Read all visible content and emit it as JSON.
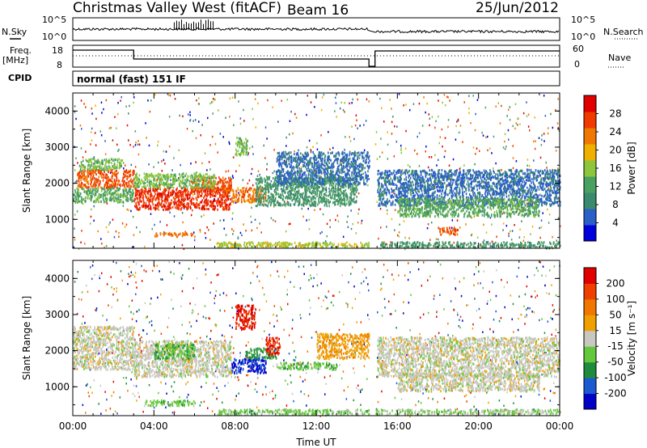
{
  "header": {
    "title": "Christmas Valley West (fitACF)",
    "beam": "Beam 16",
    "date": "25/Jun/2012"
  },
  "top_panels": {
    "nsky_label": "N.Sky",
    "nsky_ticks": [
      "10^5",
      "10^0"
    ],
    "nsky_right_ticks": [
      "10^5",
      "10^0"
    ],
    "nsearch_label": "N.Search",
    "freq_label_line1": "Freq.",
    "freq_label_line2": "[MHz]",
    "freq_ticks": [
      "18",
      "8"
    ],
    "nave_ticks": [
      "60",
      "0"
    ],
    "nave_label": "Nave",
    "cpid_label": "CPID",
    "cpid_text": "normal (fast) 151 IF"
  },
  "colors": {
    "power_scale": [
      "#0000dd",
      "#2a5fc8",
      "#3c8a6e",
      "#4aa060",
      "#8cc63c",
      "#f0b000",
      "#f07800",
      "#f03a00",
      "#e00000"
    ],
    "velocity_scale": [
      "#0000c8",
      "#1c5ad2",
      "#1e8c3c",
      "#64c83c",
      "#c8c8c0",
      "#f0a000",
      "#f07800",
      "#f04000",
      "#e00000"
    ]
  },
  "chart_data": [
    {
      "type": "heatmap",
      "name": "Power",
      "xlabel": "",
      "ylabel": "Slant Range [km]",
      "xlim_hours": [
        0,
        24
      ],
      "ylim": [
        200,
        4500
      ],
      "yticks": [
        1000,
        2000,
        3000,
        4000
      ],
      "ytick_labels": [
        "1000",
        "2000",
        "3000",
        "4000"
      ],
      "colorbar_label": "Power [dB]",
      "colorbar_ticks": [
        "28",
        "24",
        "20",
        "16",
        "12",
        "8",
        "4"
      ],
      "colorbar_range": [
        0,
        30
      ],
      "regions": [
        {
          "t": [
            0.2,
            3.0
          ],
          "r": [
            1900,
            2400
          ],
          "level": 24
        },
        {
          "t": [
            0.0,
            3.0
          ],
          "r": [
            1500,
            1900
          ],
          "level": 12
        },
        {
          "t": [
            0.3,
            2.5
          ],
          "r": [
            2400,
            2700
          ],
          "level": 14
        },
        {
          "t": [
            3.0,
            7.8
          ],
          "r": [
            1300,
            1900
          ],
          "level": 26
        },
        {
          "t": [
            5.8,
            7.8
          ],
          "r": [
            1800,
            2200
          ],
          "level": 24
        },
        {
          "t": [
            3.0,
            7.0
          ],
          "r": [
            1900,
            2300
          ],
          "level": 14
        },
        {
          "t": [
            7.8,
            9.5
          ],
          "r": [
            1500,
            1900
          ],
          "level": 22
        },
        {
          "t": [
            8.0,
            8.6
          ],
          "r": [
            2800,
            3300
          ],
          "level": 14
        },
        {
          "t": [
            9.0,
            14.0
          ],
          "r": [
            1400,
            2200
          ],
          "level": 10
        },
        {
          "t": [
            10.0,
            14.8
          ],
          "r": [
            2000,
            2900
          ],
          "level": 6
        },
        {
          "t": [
            4.0,
            6.0
          ],
          "r": [
            550,
            650
          ],
          "level": 22
        },
        {
          "t": [
            15.0,
            24.0
          ],
          "r": [
            1400,
            2400
          ],
          "level": 6
        },
        {
          "t": [
            16.0,
            23.0
          ],
          "r": [
            1100,
            1600
          ],
          "level": 12
        },
        {
          "t": [
            18.0,
            19.0
          ],
          "r": [
            600,
            800
          ],
          "level": 24
        },
        {
          "t": [
            15.0,
            24.0
          ],
          "r": [
            250,
            400
          ],
          "level": 10
        },
        {
          "t": [
            7.0,
            14.8
          ],
          "r": [
            250,
            400
          ],
          "level": 16
        }
      ]
    },
    {
      "type": "heatmap",
      "name": "Velocity",
      "xlabel": "Time UT",
      "ylabel": "Slant Range [km]",
      "xlim_hours": [
        0,
        24
      ],
      "xticks": [
        "00:00",
        "04:00",
        "08:00",
        "12:00",
        "16:00",
        "20:00",
        "00:00"
      ],
      "ylim": [
        200,
        4500
      ],
      "yticks": [
        1000,
        2000,
        3000,
        4000
      ],
      "ytick_labels": [
        "1000",
        "2000",
        "3000",
        "4000"
      ],
      "colorbar_label": "Velocity [m s⁻¹]",
      "colorbar_ticks": [
        "200",
        "100",
        "50",
        "15",
        "-15",
        "-50",
        "-100",
        "-200"
      ],
      "colorbar_range": [
        -250,
        250
      ],
      "regions": [
        {
          "t": [
            0.0,
            3.0
          ],
          "r": [
            1500,
            2700
          ],
          "level": 0
        },
        {
          "t": [
            3.0,
            7.8
          ],
          "r": [
            1300,
            2300
          ],
          "level": 0
        },
        {
          "t": [
            4.0,
            6.0
          ],
          "r": [
            1800,
            2200
          ],
          "level": -80
        },
        {
          "t": [
            7.8,
            9.5
          ],
          "r": [
            1400,
            1800
          ],
          "level": -200
        },
        {
          "t": [
            8.5,
            10.0
          ],
          "r": [
            1800,
            2100
          ],
          "level": -110
        },
        {
          "t": [
            9.5,
            10.2
          ],
          "r": [
            1900,
            2400
          ],
          "level": 200
        },
        {
          "t": [
            8.0,
            9.0
          ],
          "r": [
            2600,
            3300
          ],
          "level": 200
        },
        {
          "t": [
            10.0,
            13.0
          ],
          "r": [
            1500,
            1700
          ],
          "level": -60
        },
        {
          "t": [
            3.5,
            6.0
          ],
          "r": [
            500,
            650
          ],
          "level": -60
        },
        {
          "t": [
            15.0,
            24.0
          ],
          "r": [
            1300,
            2400
          ],
          "level": 0
        },
        {
          "t": [
            16.0,
            23.0
          ],
          "r": [
            900,
            1400
          ],
          "level": 0
        },
        {
          "t": [
            7.0,
            14.8
          ],
          "r": [
            250,
            400
          ],
          "level": -50
        },
        {
          "t": [
            14.8,
            24.0
          ],
          "r": [
            250,
            400
          ],
          "level": -30
        },
        {
          "t": [
            12.0,
            14.8
          ],
          "r": [
            1800,
            2500
          ],
          "level": 60
        }
      ]
    }
  ]
}
